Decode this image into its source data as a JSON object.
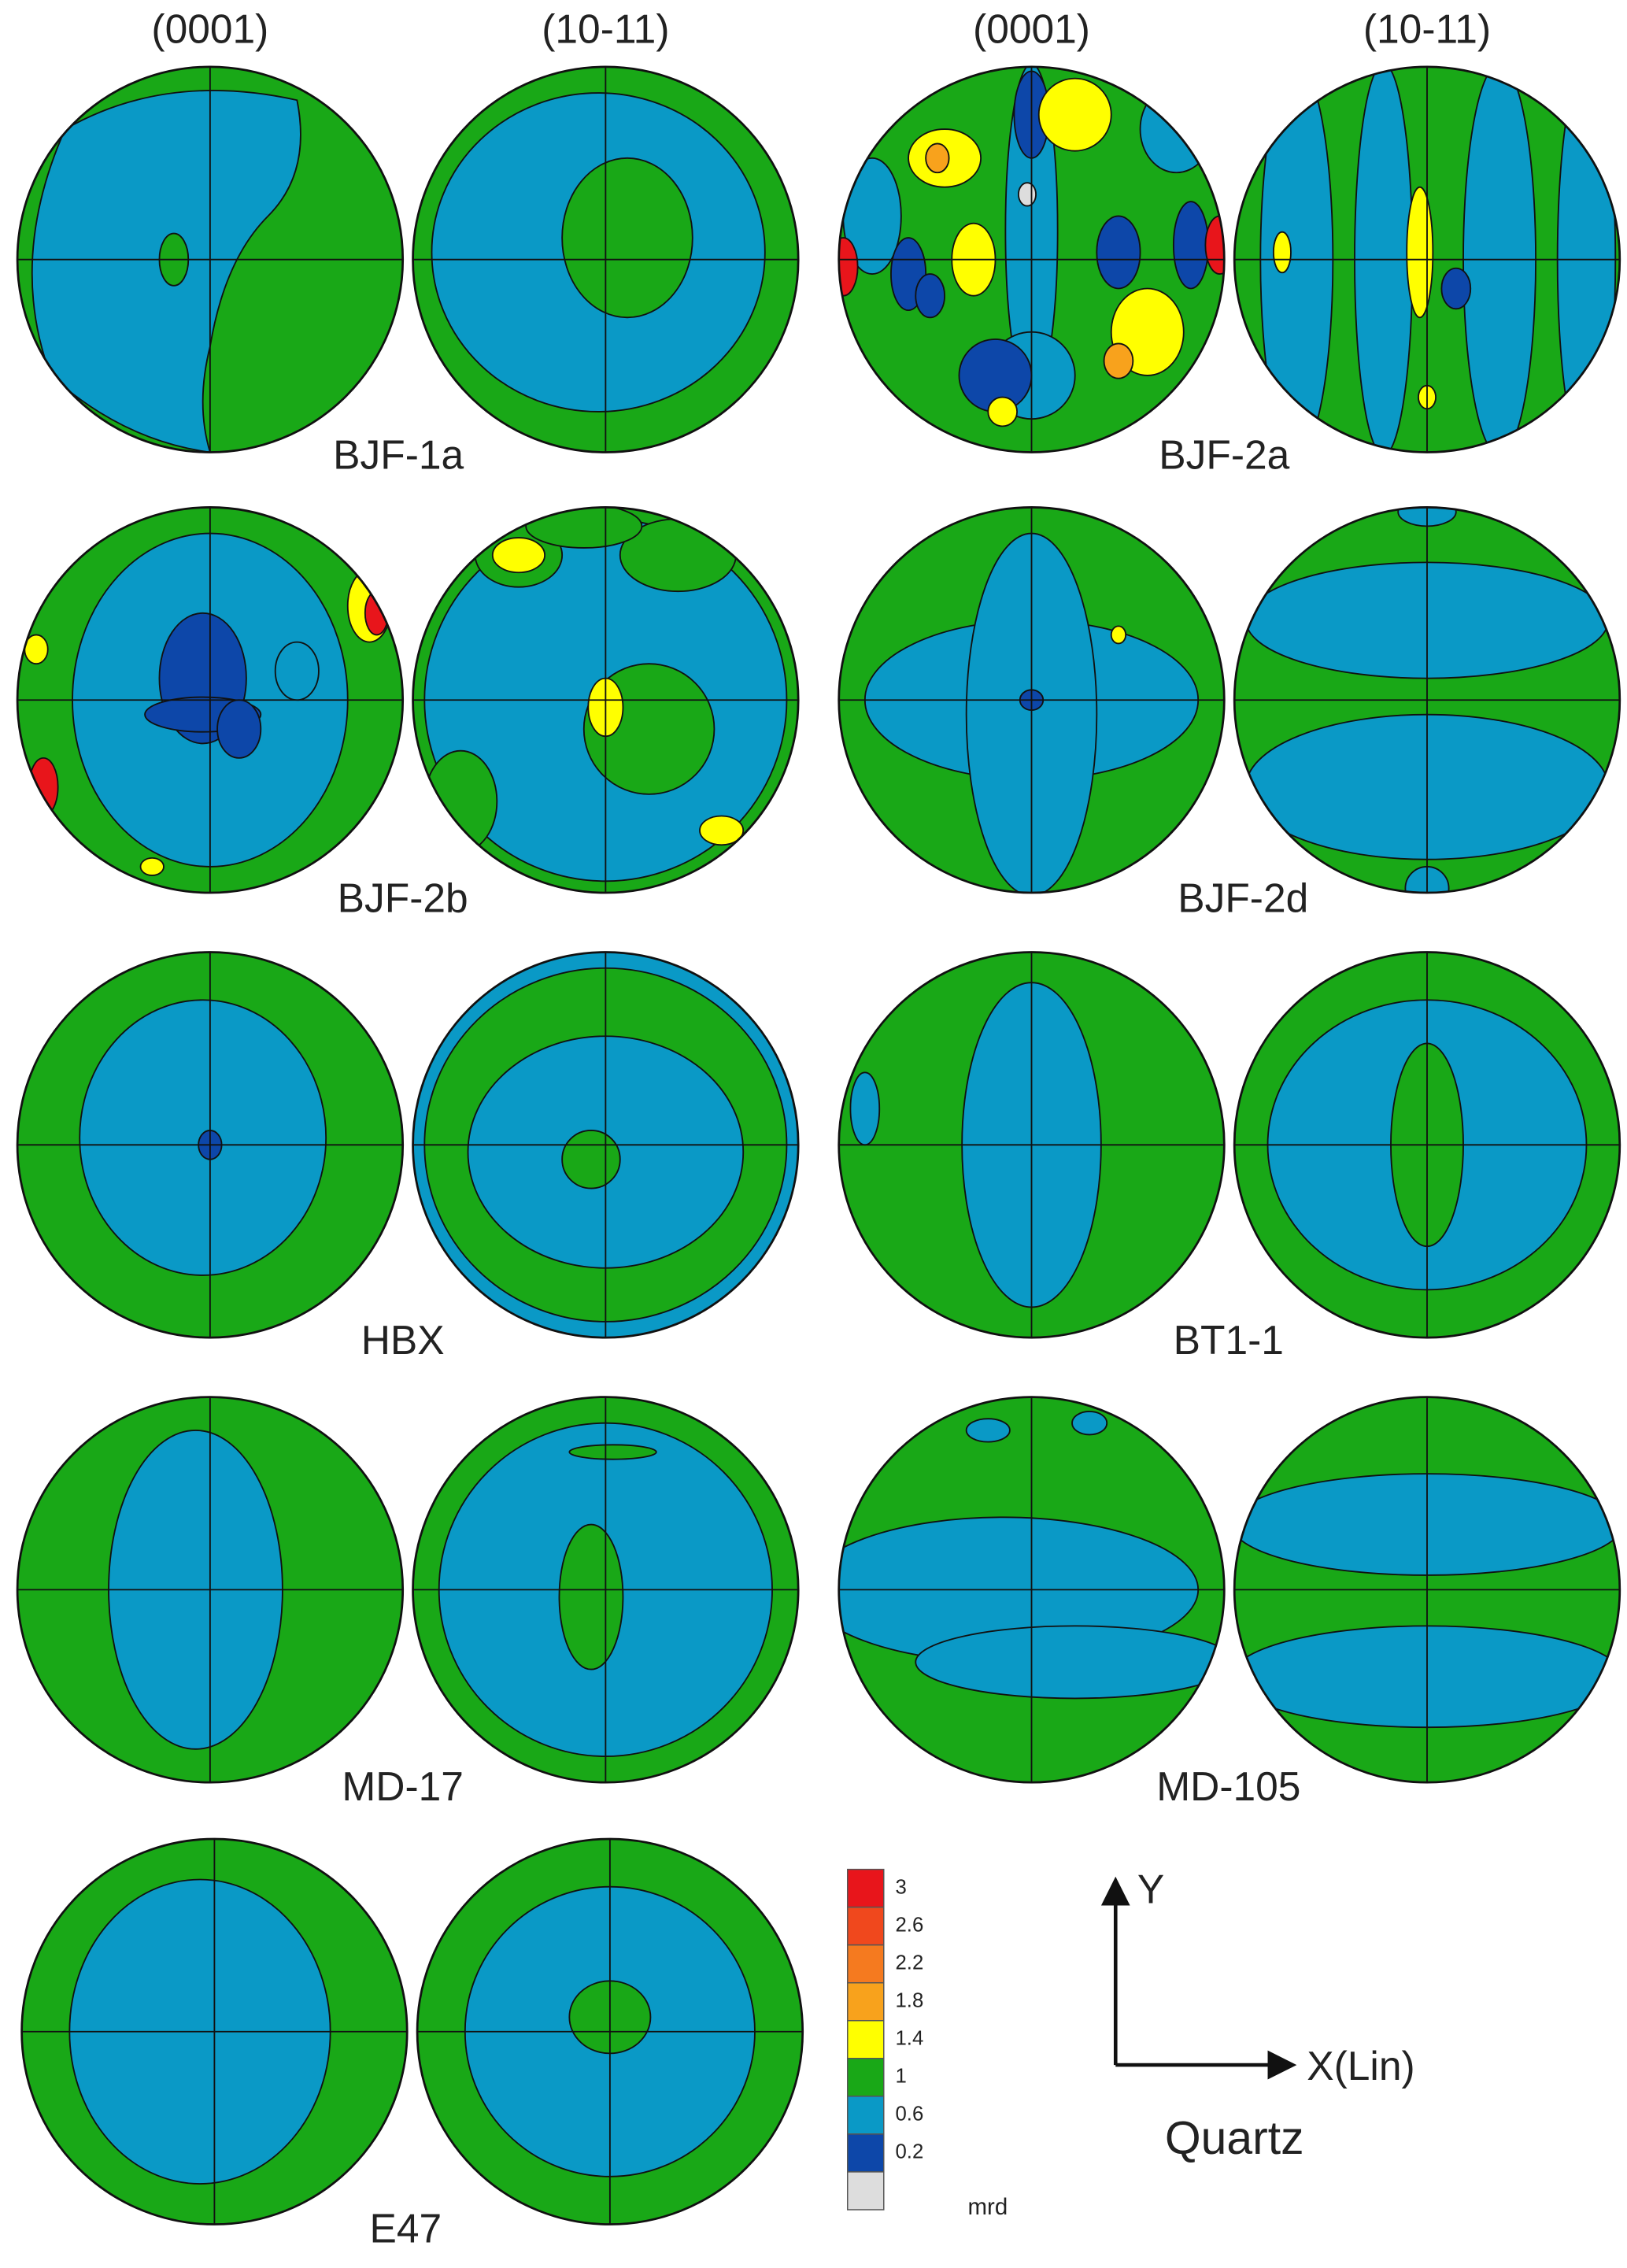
{
  "headers": [
    "(0001)",
    "(10-11)",
    "(0001)",
    "(10-11)"
  ],
  "samples": [
    {
      "label": "BJF-1a"
    },
    {
      "label": "BJF-2a"
    },
    {
      "label": "BJF-2b"
    },
    {
      "label": "BJF-2d"
    },
    {
      "label": "HBX"
    },
    {
      "label": "BT1-1"
    },
    {
      "label": "MD-17"
    },
    {
      "label": "MD-105"
    },
    {
      "label": "E47"
    }
  ],
  "legend": {
    "levels": [
      "3",
      "2.6",
      "2.2",
      "1.8",
      "1.4",
      "1",
      "0.6",
      "0.2"
    ],
    "colors": [
      "#e8151b",
      "#f0481d",
      "#f57a1f",
      "#f8a21c",
      "#ffff00",
      "#19a817",
      "#0a99c6",
      "#0d47a9",
      "#dddddd"
    ],
    "unit": "mrd"
  },
  "axes": {
    "y": "Y",
    "x": "X(Lin)"
  },
  "mineral": "Quartz"
}
